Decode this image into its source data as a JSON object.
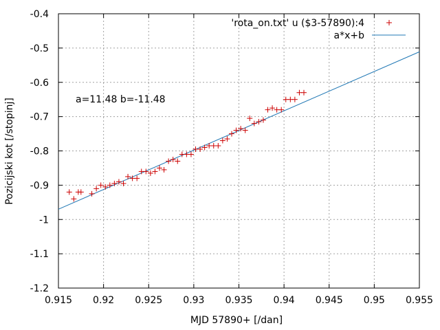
{
  "chart_data": {
    "type": "scatter",
    "title": "",
    "xlabel": "MJD 57890+ [/dan]",
    "ylabel": "Pozicijski kot [/stopinj]",
    "xlim": [
      0.915,
      0.955
    ],
    "ylim": [
      -1.2,
      -0.4
    ],
    "xticks": [
      0.915,
      0.92,
      0.925,
      0.93,
      0.935,
      0.94,
      0.945,
      0.95,
      0.955
    ],
    "xtick_labels": [
      "0.915",
      "0.92",
      "0.925",
      "0.93",
      "0.935",
      "0.94",
      "0.945",
      "0.95",
      "0.955"
    ],
    "yticks": [
      -1.2,
      -1.1,
      -1.0,
      -0.9,
      -0.8,
      -0.7,
      -0.6,
      -0.5,
      -0.4
    ],
    "ytick_labels": [
      "-1.2",
      "-1.1",
      "-1",
      "-0.9",
      "-0.8",
      "-0.7",
      "-0.6",
      "-0.5",
      "-0.4"
    ],
    "grid": true,
    "legend_position": "top-right",
    "annotation": "a=11.48 b=-11.48",
    "series": [
      {
        "name": "'rota_on.txt' u ($3-57890):4",
        "kind": "points",
        "color": "#cc0000",
        "x": [
          0.9162,
          0.9167,
          0.9172,
          0.9175,
          0.9187,
          0.9192,
          0.9197,
          0.9202,
          0.9207,
          0.9212,
          0.9217,
          0.9222,
          0.9227,
          0.9232,
          0.9237,
          0.9242,
          0.9247,
          0.9252,
          0.9257,
          0.9262,
          0.9267,
          0.9272,
          0.9277,
          0.9282,
          0.9287,
          0.9292,
          0.9297,
          0.9302,
          0.9307,
          0.9312,
          0.9317,
          0.9322,
          0.9327,
          0.9332,
          0.9337,
          0.9342,
          0.9347,
          0.9352,
          0.9357,
          0.9362,
          0.9367,
          0.9372,
          0.9377,
          0.9382,
          0.9387,
          0.9392,
          0.9397,
          0.9402,
          0.9407,
          0.9412,
          0.9417,
          0.9422
        ],
        "y": [
          -0.92,
          -0.94,
          -0.92,
          -0.92,
          -0.925,
          -0.91,
          -0.9,
          -0.905,
          -0.9,
          -0.895,
          -0.89,
          -0.895,
          -0.875,
          -0.88,
          -0.88,
          -0.86,
          -0.86,
          -0.865,
          -0.86,
          -0.85,
          -0.855,
          -0.83,
          -0.825,
          -0.83,
          -0.81,
          -0.81,
          -0.81,
          -0.795,
          -0.795,
          -0.79,
          -0.785,
          -0.785,
          -0.785,
          -0.77,
          -0.765,
          -0.75,
          -0.74,
          -0.735,
          -0.74,
          -0.705,
          -0.72,
          -0.715,
          -0.71,
          -0.68,
          -0.675,
          -0.68,
          -0.68,
          -0.65,
          -0.65,
          -0.65,
          -0.63,
          -0.63
        ]
      },
      {
        "name": "a*x+b",
        "kind": "line",
        "color": "#1f77b4",
        "a": 11.48,
        "b": -11.48,
        "x_at_line_start": 0.915,
        "y_at_line_start": -0.97,
        "x_at_line_end": 0.955,
        "y_at_line_end": -0.511
      }
    ]
  }
}
